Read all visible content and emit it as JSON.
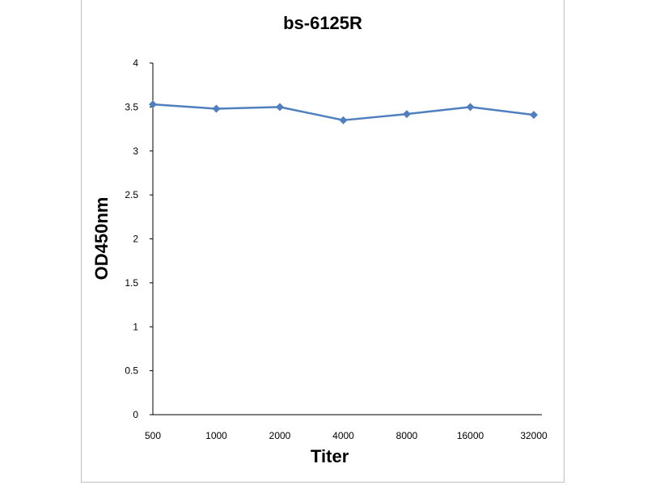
{
  "chart_data": {
    "type": "line",
    "title": "bs-6125R",
    "xlabel": "Titer",
    "ylabel": "OD450nm",
    "categories": [
      "500",
      "1000",
      "2000",
      "4000",
      "8000",
      "16000",
      "32000"
    ],
    "series": [
      {
        "values": [
          3.53,
          3.48,
          3.5,
          3.35,
          3.42,
          3.5,
          3.41
        ]
      }
    ],
    "ylim": [
      0,
      4
    ],
    "yticks": [
      "0",
      "0.5",
      "1",
      "1.5",
      "2",
      "2.5",
      "3",
      "3.5",
      "4"
    ],
    "grid": false,
    "legend": "none",
    "color": "#4f7fbf"
  }
}
